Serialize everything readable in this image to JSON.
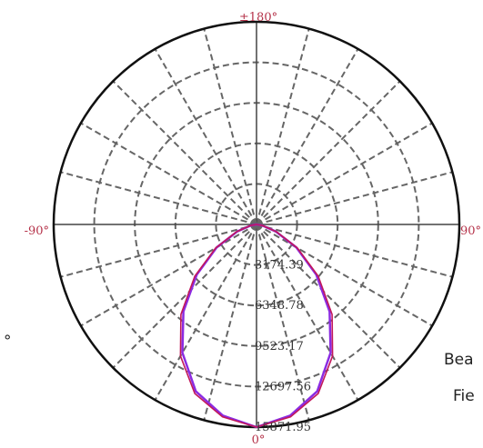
{
  "chart_data": {
    "type": "polar",
    "angle_labels": {
      "top": "±180°",
      "left": "-90°",
      "right": "90°",
      "bottom": "0°"
    },
    "ring_values": [
      "3174.39",
      "6348.78",
      "9523.17",
      "12697.56",
      "15871.95"
    ],
    "r_max": 15871.95,
    "grid": true,
    "grid_angle_step_deg": 15,
    "series": [
      {
        "color": "#8b2be2",
        "points": [
          {
            "angle": 0,
            "value": 15871.95
          },
          {
            "angle": 10,
            "value": 15200
          },
          {
            "angle": 20,
            "value": 13900
          },
          {
            "angle": 30,
            "value": 11600
          },
          {
            "angle": 40,
            "value": 8900
          },
          {
            "angle": 50,
            "value": 6100
          },
          {
            "angle": 60,
            "value": 3600
          },
          {
            "angle": 70,
            "value": 1600
          },
          {
            "angle": 80,
            "value": 450
          },
          {
            "angle": 90,
            "value": 0
          }
        ]
      },
      {
        "color": "#c2185b",
        "points": [
          {
            "angle": 0,
            "value": 15871.95
          },
          {
            "angle": 10,
            "value": 15300
          },
          {
            "angle": 20,
            "value": 14100
          },
          {
            "angle": 30,
            "value": 11900
          },
          {
            "angle": 40,
            "value": 9200
          },
          {
            "angle": 50,
            "value": 6300
          },
          {
            "angle": 60,
            "value": 3700
          },
          {
            "angle": 70,
            "value": 1650
          },
          {
            "angle": 80,
            "value": 470
          },
          {
            "angle": 90,
            "value": 0
          }
        ]
      }
    ]
  },
  "side_text": {
    "left_fragment": "°",
    "beam_fragment": "Bea",
    "field_fragment": "Fie"
  },
  "colors": {
    "grid": "#666666",
    "outer_circle": "#111111",
    "angle_label": "#b5334a"
  }
}
